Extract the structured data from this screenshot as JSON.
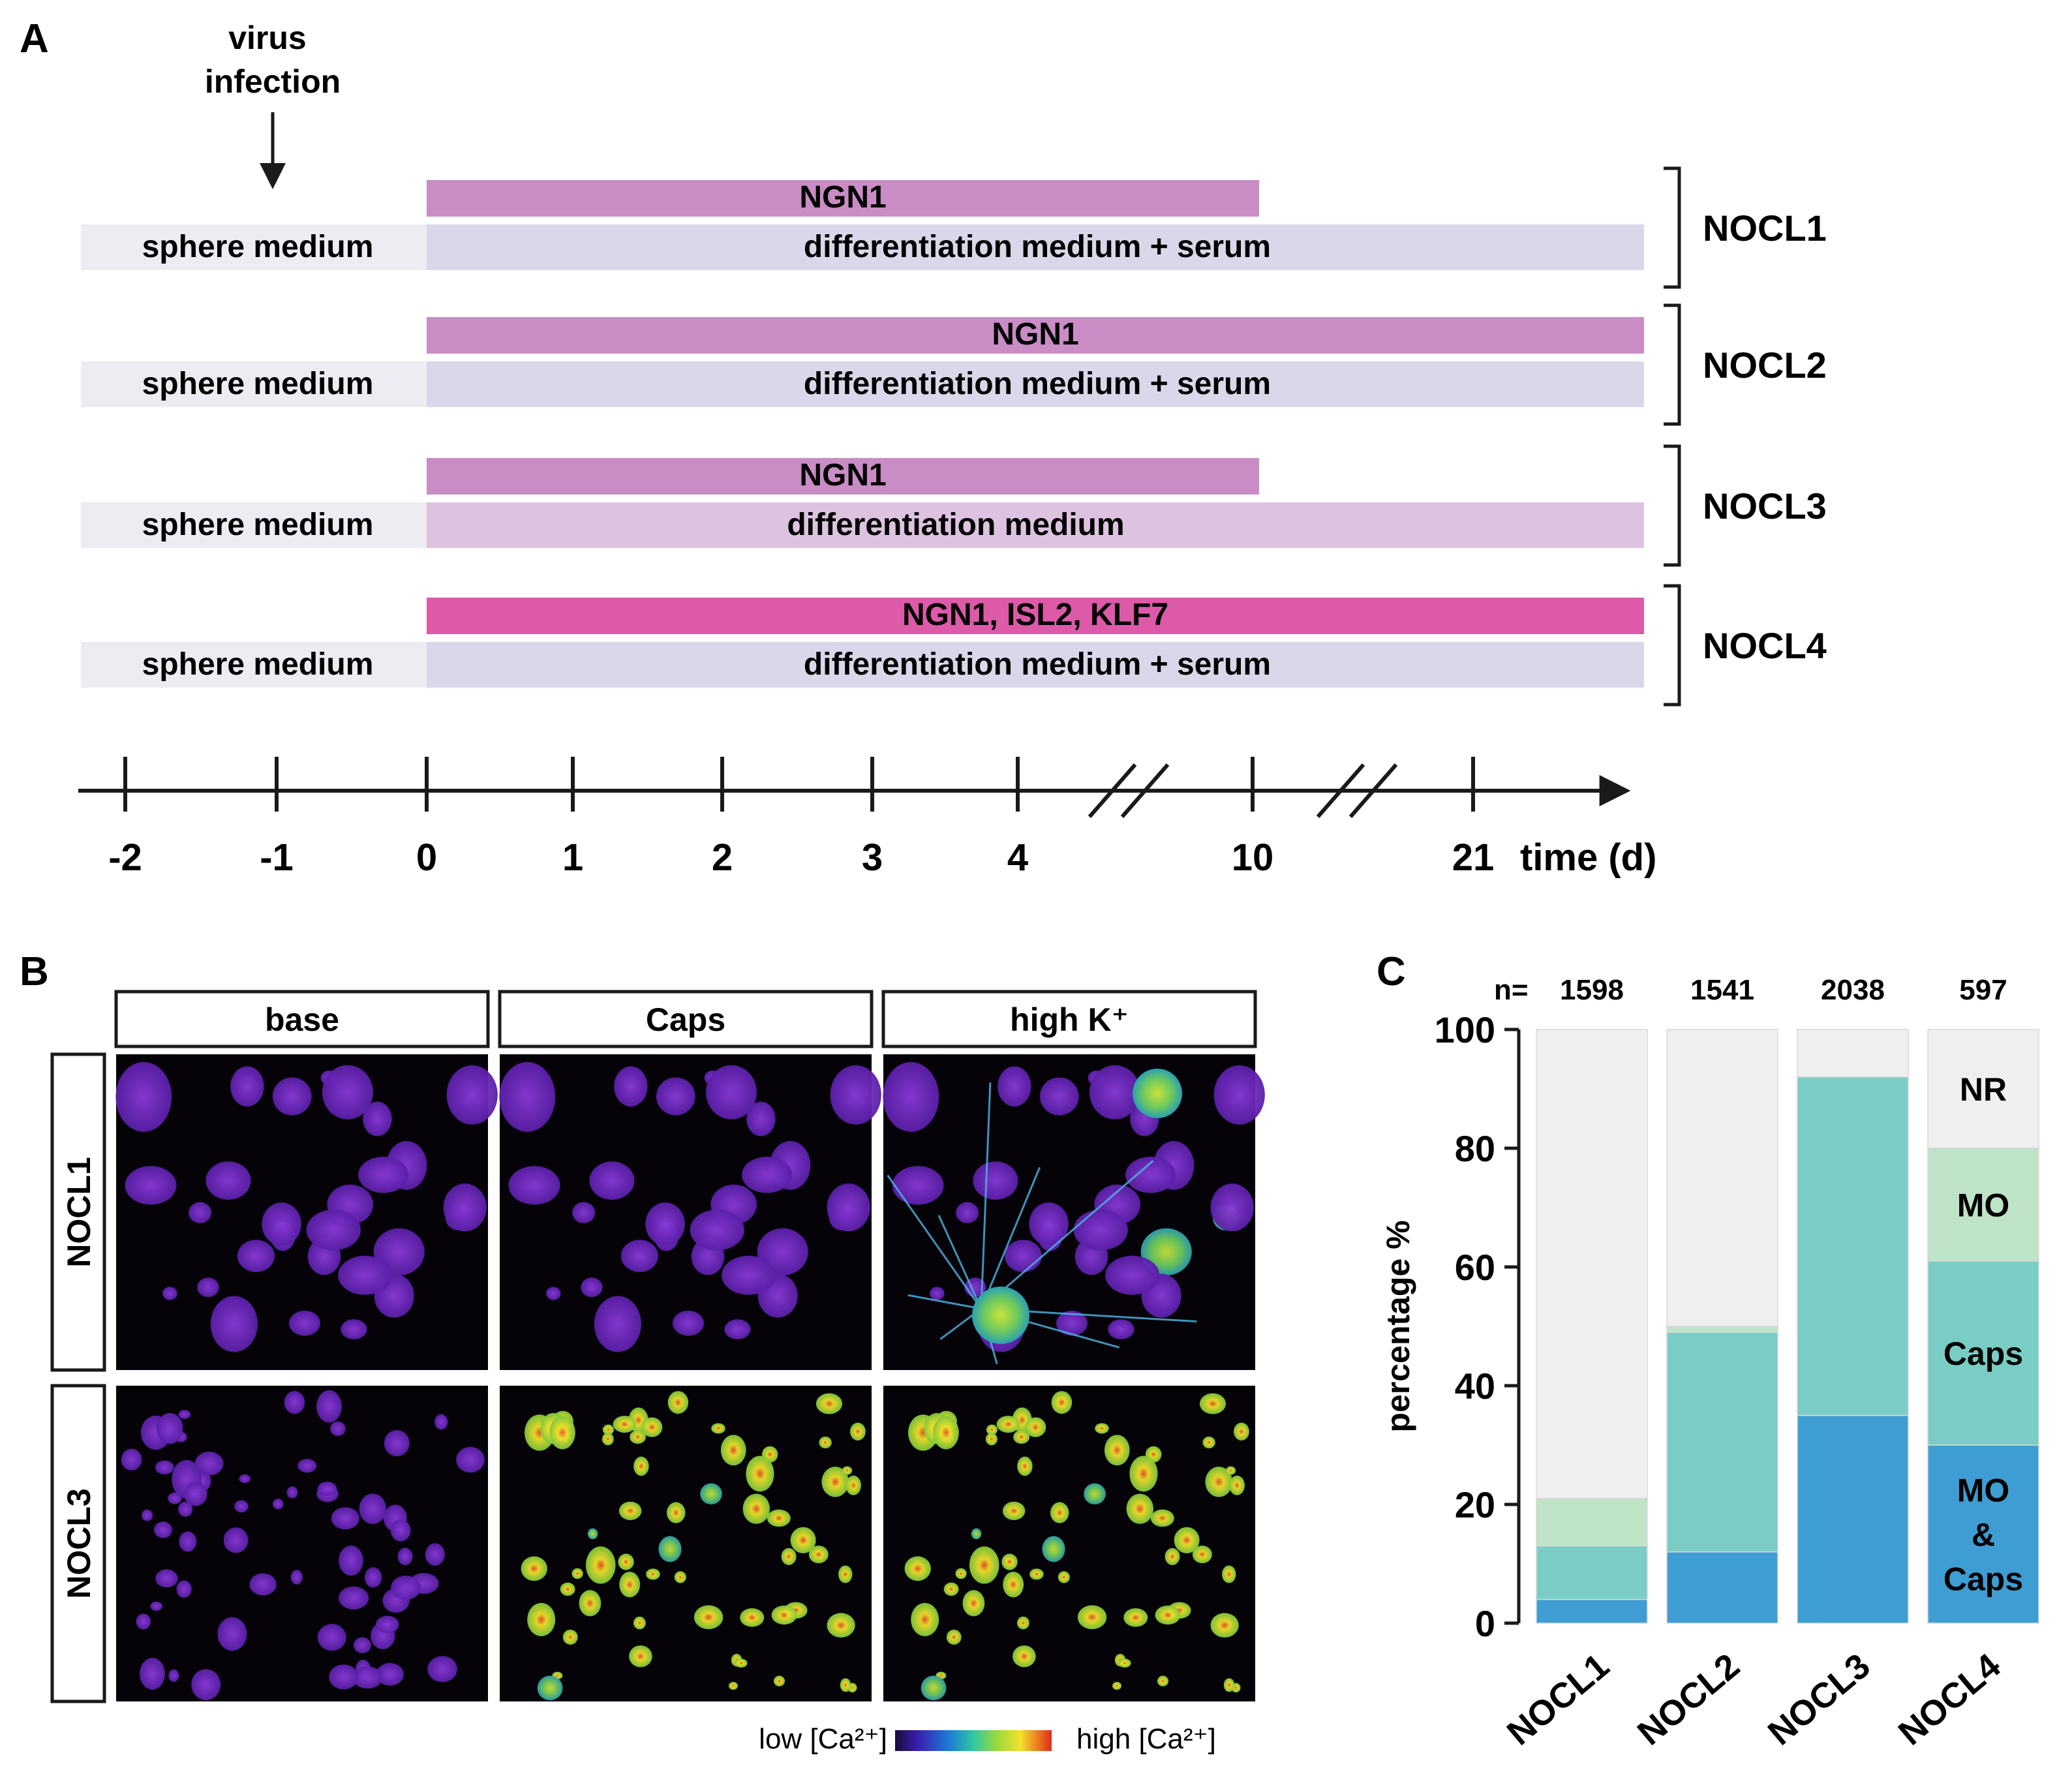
{
  "panel_a": {
    "label": "A",
    "virus_label_line1": "virus",
    "virus_label_line2": "infection",
    "rows": [
      {
        "group": "NOCL1",
        "factor": "NGN1",
        "factor_color": "#c98cc4",
        "factor_end_day": 10,
        "sphere": "sphere medium",
        "diff": "differentiation medium + serum",
        "diff_color": "#d8d8ea"
      },
      {
        "group": "NOCL2",
        "factor": "NGN1",
        "factor_color": "#c98cc4",
        "factor_end_day": 21,
        "sphere": "sphere medium",
        "diff": "differentiation medium + serum",
        "diff_color": "#d8d8ea"
      },
      {
        "group": "NOCL3",
        "factor": "NGN1",
        "factor_color": "#c98cc4",
        "factor_end_day": 10,
        "sphere": "sphere medium",
        "diff": "differentiation medium",
        "diff_color": "#ddc3e0"
      },
      {
        "group": "NOCL4",
        "factor": "NGN1, ISL2, KLF7",
        "factor_color": "#dc5aa8",
        "factor_end_day": 21,
        "sphere": "sphere medium",
        "diff": "differentiation medium + serum",
        "diff_color": "#d8d8ea"
      }
    ],
    "sphere_color": "#ececf2",
    "timeline_ticks": [
      "-2",
      "-1",
      "0",
      "1",
      "2",
      "3",
      "4",
      "10",
      "21"
    ],
    "time_unit": "time (d)"
  },
  "panel_b": {
    "label": "B",
    "columns": [
      "base",
      "Caps",
      "high K⁺"
    ],
    "rows": [
      "NOCL1",
      "NOCL3"
    ],
    "colorbar_low": "low [Ca²⁺]",
    "colorbar_high": "high [Ca²⁺]"
  },
  "chart_data": {
    "type": "bar",
    "stacked": true,
    "panel_label": "C",
    "categories": [
      "NOCL1",
      "NOCL2",
      "NOCL3",
      "NOCL4"
    ],
    "n_prefix": "n=",
    "n_values": [
      "1598",
      "1541",
      "2038",
      "597"
    ],
    "ylabel": "percentage %",
    "ylim": [
      0,
      100
    ],
    "yticks": [
      "0",
      "20",
      "40",
      "60",
      "80",
      "100"
    ],
    "series": [
      {
        "name": "MO & Caps",
        "color": "#3e9dd2",
        "values": [
          4,
          12,
          35,
          30
        ]
      },
      {
        "name": "Caps",
        "color": "#79cdc4",
        "values": [
          9,
          37,
          57,
          31
        ]
      },
      {
        "name": "MO",
        "color": "#bfe3c6",
        "values": [
          8,
          1,
          0,
          19
        ]
      },
      {
        "name": "NR",
        "color": "#efefef",
        "values": [
          79,
          50,
          8,
          20
        ]
      }
    ],
    "segment_labels": [
      "MO\n&\nCaps",
      "Caps",
      "MO",
      "NR"
    ]
  },
  "colors": {
    "text": "#1a1a1a",
    "bracket": "#1a1a1a",
    "axis": "#1a1a1a"
  }
}
